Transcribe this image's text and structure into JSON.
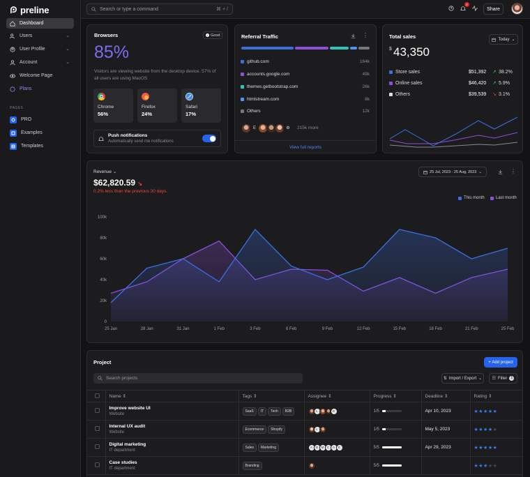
{
  "brand": {
    "name": "preline"
  },
  "sidebar": {
    "items": [
      {
        "label": "Dashboard",
        "icon": "home-icon"
      },
      {
        "label": "Users",
        "icon": "users-icon"
      },
      {
        "label": "User Profile",
        "icon": "user-icon"
      },
      {
        "label": "Account",
        "icon": "account-icon"
      },
      {
        "label": "Welcome Page",
        "icon": "eye-icon"
      },
      {
        "label": "Plans",
        "icon": "plans-icon"
      }
    ],
    "section_label": "PAGES",
    "pages": [
      {
        "label": "PRO",
        "icon": "pro-icon"
      },
      {
        "label": "Examples",
        "icon": "examples-icon"
      },
      {
        "label": "Templates",
        "icon": "templates-icon"
      }
    ]
  },
  "topbar": {
    "search_placeholder": "Search or type a command",
    "shortcut": "⌘ + /",
    "notification_count": "2",
    "share_label": "Share"
  },
  "browsers": {
    "title": "Browsers",
    "badge": "Good",
    "percent": "85%",
    "description": "Visitors are viewing website from the desktop device. 57% of all users are using MacOS",
    "items": [
      {
        "name": "Chrome",
        "value": "56%"
      },
      {
        "name": "Firefox",
        "value": "24%"
      },
      {
        "name": "Safari",
        "value": "17%"
      }
    ],
    "push_title": "Push notifications",
    "push_sub": "Automatically send me notifications"
  },
  "referral": {
    "title": "Referral Traffic",
    "sources": [
      {
        "name": "github.com",
        "value": "164k",
        "color": "#3b6fe0"
      },
      {
        "name": "accounts.google.com",
        "value": "49k",
        "color": "#8b4fd8"
      },
      {
        "name": "themes.getbootstrap.com",
        "value": "26k",
        "color": "#2dc5c0"
      },
      {
        "name": "htmlstream.com",
        "value": "8k",
        "color": "#4f93f0"
      },
      {
        "name": "Others",
        "value": "12k",
        "color": "#777780"
      }
    ],
    "avatar_letter": "E",
    "more": "215k more",
    "view_full": "View full reports"
  },
  "total_sales": {
    "title": "Total sales",
    "period": "Today",
    "currency": "$",
    "amount": "43,350",
    "rows": [
      {
        "label": "Store sales",
        "amount": "$51,392",
        "change": "38.2%",
        "dir": "up",
        "color": "#3b6fe0"
      },
      {
        "label": "Online sales",
        "amount": "$46,420",
        "change": "5.9%",
        "dir": "up",
        "color": "#8b4fd8"
      },
      {
        "label": "Others",
        "amount": "$39,539",
        "change": "3.1%",
        "dir": "down",
        "color": "#dddddd"
      }
    ]
  },
  "revenue": {
    "label": "Revenue",
    "amount": "$62,820.59",
    "note": "0.2% less than the previous 30 days.",
    "date_range": "25 Jul, 2023 - 25 Aug, 2023",
    "legend_this": "This month",
    "legend_last": "Last month"
  },
  "chart_data": {
    "type": "area",
    "categories": [
      "25 Jan",
      "28 Jan",
      "31 Jan",
      "1 Feb",
      "3 Feb",
      "6 Feb",
      "9 Feb",
      "12 Feb",
      "15 Feb",
      "18 Feb",
      "21 Feb",
      "25 Feb"
    ],
    "y_ticks": [
      "0",
      "20k",
      "40k",
      "60k",
      "80k",
      "100k"
    ],
    "ylim": [
      0,
      100000
    ],
    "series": [
      {
        "name": "This month",
        "color": "#3b6fe0",
        "values": [
          18000,
          51000,
          60000,
          38000,
          88000,
          53000,
          40000,
          52000,
          88000,
          80000,
          60000,
          70000
        ]
      },
      {
        "name": "Last month",
        "color": "#8b4fd8",
        "values": [
          27000,
          38000,
          60000,
          77000,
          40000,
          50000,
          49000,
          29000,
          42000,
          27000,
          42000,
          50000
        ]
      }
    ]
  },
  "project": {
    "title": "Project",
    "add_label": "Add project",
    "search_placeholder": "Search projects",
    "import_label": "Import / Export",
    "filter_label": "Filter",
    "filter_count": "1",
    "columns": [
      "Name",
      "Tags",
      "Assignee",
      "Progress",
      "Deadline",
      "Rating"
    ],
    "rows": [
      {
        "name": "Improve website UI",
        "sub": "Website",
        "tags": [
          "SaaS",
          "IT",
          "Tech",
          "B2B"
        ],
        "assignees": [
          "L",
          "D"
        ],
        "progress": "1/5",
        "pct": 20,
        "deadline": "Apr 10, 2023",
        "rating": 5
      },
      {
        "name": "Internal UX audit",
        "sub": "Website",
        "tags": [
          "Ecommerce",
          "Shopify"
        ],
        "assignees": [
          "L"
        ],
        "progress": "1/5",
        "pct": 20,
        "deadline": "May 5, 2023",
        "rating": 4
      },
      {
        "name": "Digital marketing",
        "sub": "IT department",
        "tags": [
          "Sales",
          "Marketing"
        ],
        "assignees": [
          "A",
          "B",
          "M",
          "C",
          "A",
          "E"
        ],
        "progress": "5/5",
        "pct": 100,
        "deadline": "Apr 29, 2023",
        "rating": 5
      },
      {
        "name": "Case studies",
        "sub": "IT department",
        "tags": [
          "Branding"
        ],
        "assignees": [],
        "progress": "5/5",
        "pct": 100,
        "deadline": "",
        "rating": 3
      }
    ]
  }
}
